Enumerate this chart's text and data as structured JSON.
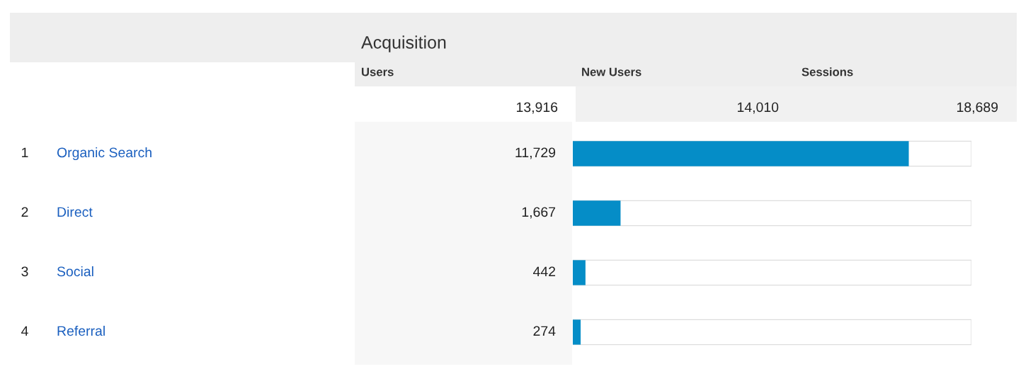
{
  "chart_data": {
    "type": "bar",
    "orientation": "horizontal",
    "title": "Acquisition",
    "categories": [
      "Organic Search",
      "Direct",
      "Social",
      "Referral"
    ],
    "values": [
      11729,
      1667,
      442,
      274
    ],
    "color": "#058dc7",
    "xlim": [
      0,
      13916
    ],
    "tick_labels": false,
    "value_labels": [
      "11,729",
      "1,667",
      "442",
      "274"
    ],
    "legend": false,
    "annotations": [
      "Users",
      "New Users",
      "Sessions",
      "13,916",
      "14,010",
      "18,689",
      "1",
      "2",
      "3",
      "4"
    ]
  }
}
